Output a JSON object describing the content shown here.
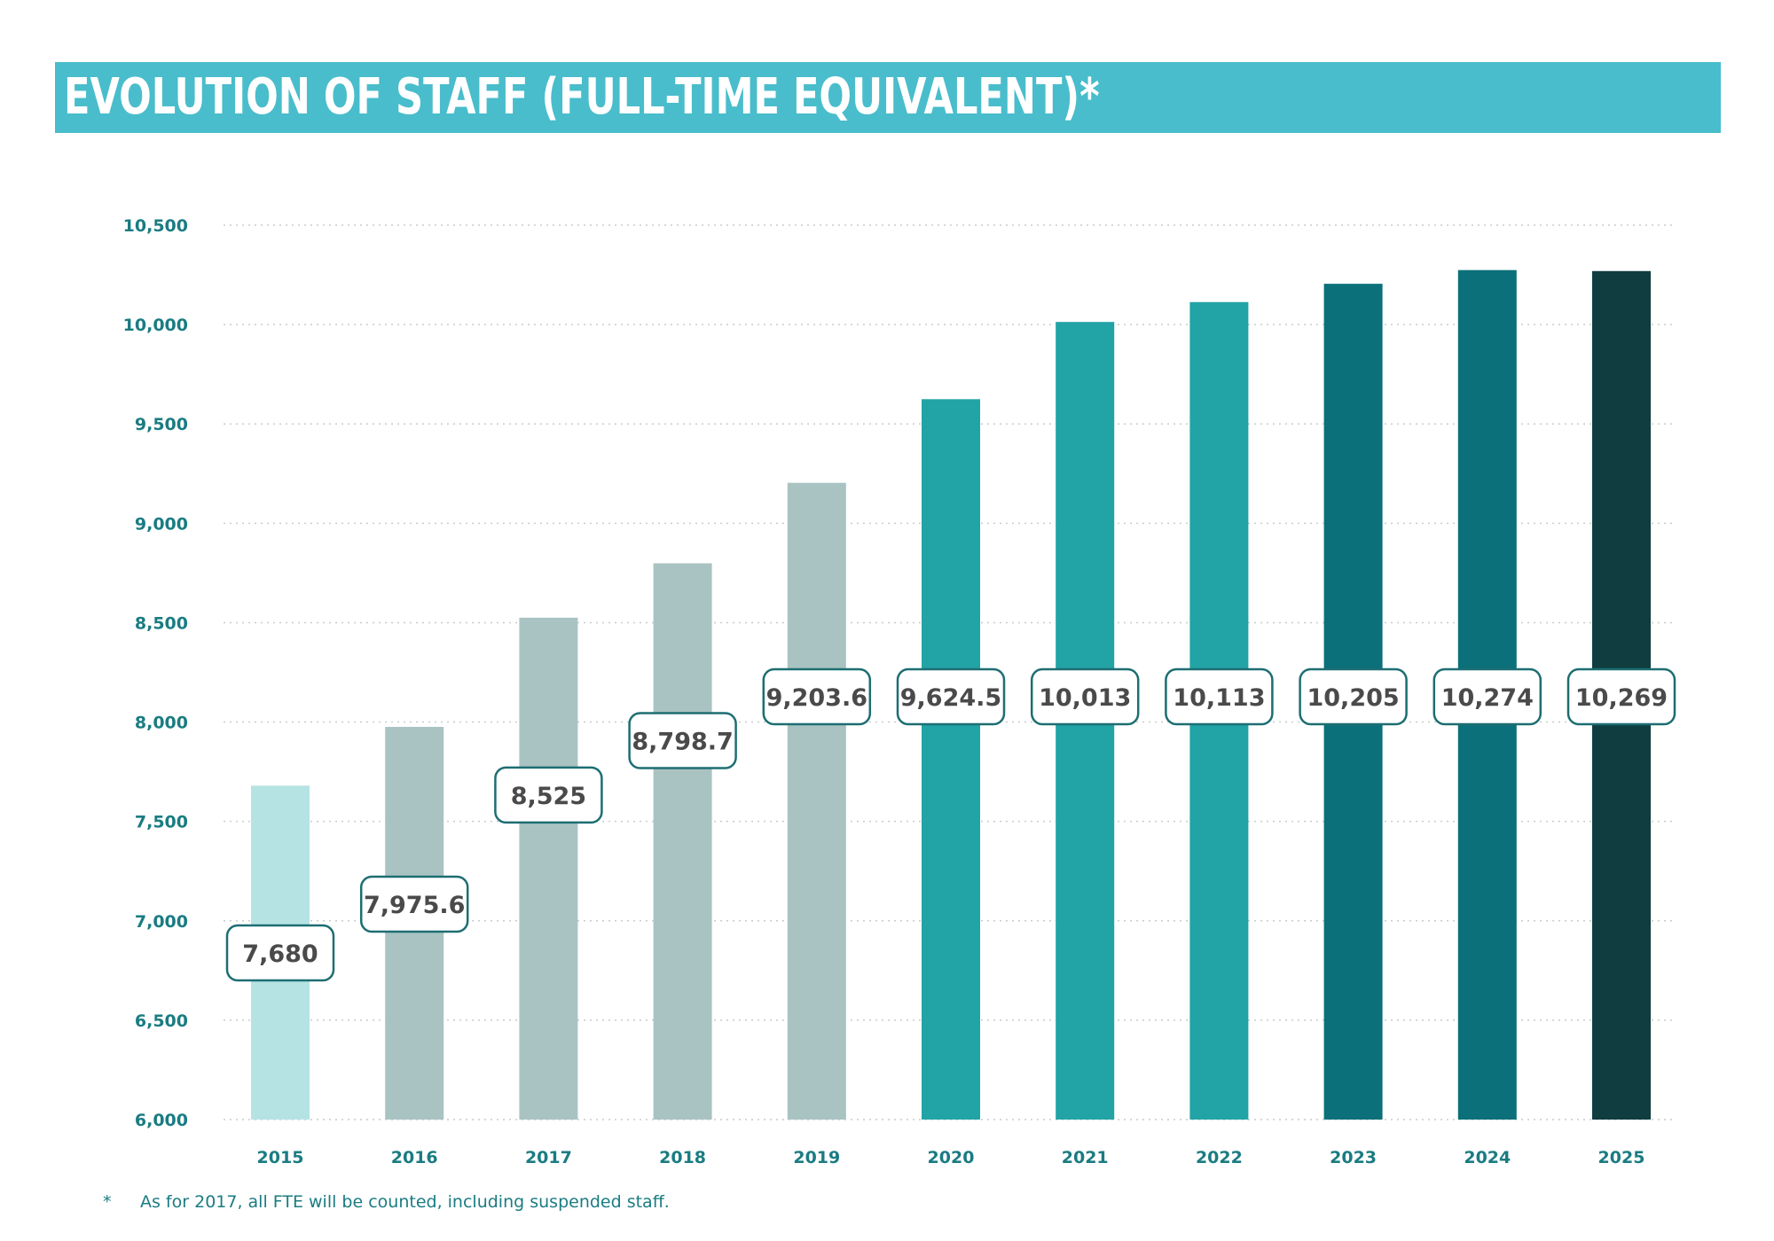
{
  "title": "EVOLUTION OF STAFF (FULL-TIME EQUIVALENT)*",
  "footnote": {
    "marker": "*",
    "text": "As for 2017, all FTE will be counted, including suspended staff."
  },
  "colors": {
    "title_band": "#49bdcb",
    "axis_text": "#1a7c82",
    "grid": "#c8cccc",
    "label_border": "#1d6e72",
    "label_text": "#4a4a4a"
  },
  "chart_data": {
    "type": "bar",
    "title": "EVOLUTION OF STAFF (FULL-TIME EQUIVALENT)*",
    "xlabel": "",
    "ylabel": "",
    "ylim": [
      6000,
      10500
    ],
    "yticks": [
      6000,
      6500,
      7000,
      7500,
      8000,
      8500,
      9000,
      9500,
      10000,
      10500
    ],
    "ytick_labels": [
      "6,000",
      "6,500",
      "7,000",
      "7,500",
      "8,000",
      "8,500",
      "9,000",
      "9,500",
      "10,000",
      "10,500"
    ],
    "grid": true,
    "categories": [
      "2015",
      "2016",
      "2017",
      "2018",
      "2019",
      "2020",
      "2021",
      "2022",
      "2023",
      "2024",
      "2025"
    ],
    "values": [
      7680,
      7975.6,
      8525,
      8798.7,
      9203.6,
      9624.5,
      10013,
      10113,
      10205,
      10274,
      10269
    ],
    "value_labels": [
      "7,680",
      "7,975.6",
      "8,525",
      "8,798.7",
      "9,203.6",
      "9,624.5",
      "10,013",
      "10,113",
      "10,205",
      "10,274",
      "10,269"
    ],
    "bar_colors": [
      "#b5e3e4",
      "#a9c3c2",
      "#a9c3c2",
      "#a9c3c2",
      "#a9c3c2",
      "#22a3a5",
      "#22a3a5",
      "#22a3a5",
      "#0b7079",
      "#0b7079",
      "#0f3d40"
    ]
  }
}
